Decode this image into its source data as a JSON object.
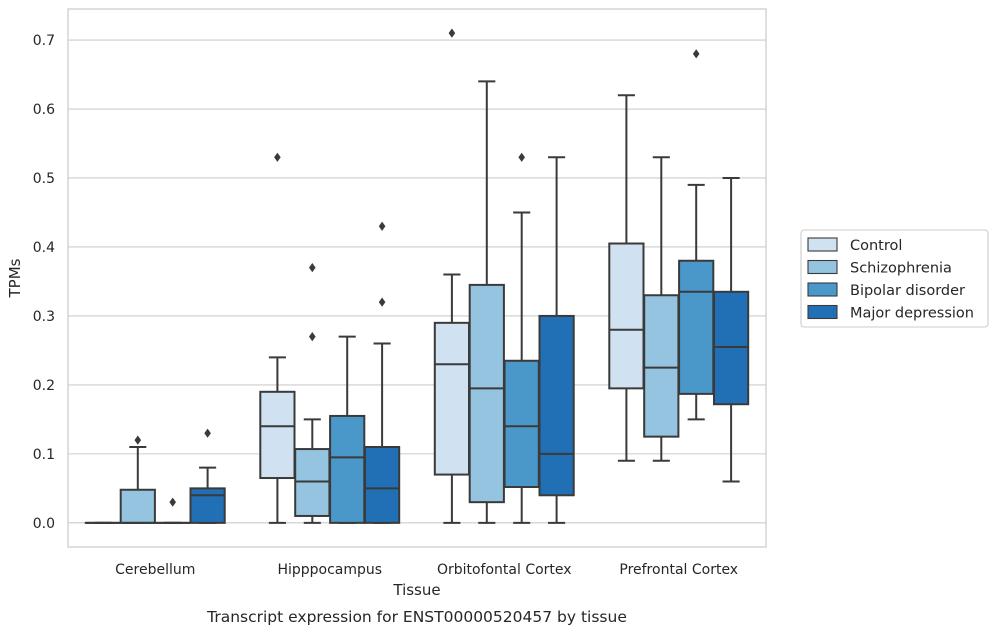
{
  "caption": "Transcript expression for ENST00000520457 by tissue",
  "chart_data": {
    "type": "box",
    "title": "",
    "xlabel": "Tissue",
    "ylabel": "TPMs",
    "ylim": [
      -0.035,
      0.745
    ],
    "yticks": [
      0.0,
      0.1,
      0.2,
      0.3,
      0.4,
      0.5,
      0.6,
      0.7
    ],
    "ytick_labels": [
      "0.0",
      "0.1",
      "0.2",
      "0.3",
      "0.4",
      "0.5",
      "0.6",
      "0.7"
    ],
    "grid": "horizontal",
    "legend_position": "right",
    "categories": [
      "Cerebellum",
      "Hipppocampus",
      "Orbitofontal Cortex",
      "Prefrontal Cortex"
    ],
    "series": [
      {
        "name": "Control",
        "color": "#d0e1f2",
        "boxes": [
          {
            "min": 0.0,
            "q1": 0.0,
            "median": 0.0,
            "q3": 0.0,
            "max": 0.0,
            "outliers": []
          },
          {
            "min": 0.0,
            "q1": 0.065,
            "median": 0.14,
            "q3": 0.19,
            "max": 0.24,
            "outliers": [
              0.53
            ]
          },
          {
            "min": 0.0,
            "q1": 0.07,
            "median": 0.23,
            "q3": 0.29,
            "max": 0.36,
            "outliers": [
              0.71
            ]
          },
          {
            "min": 0.09,
            "q1": 0.195,
            "median": 0.28,
            "q3": 0.405,
            "max": 0.62,
            "outliers": []
          }
        ]
      },
      {
        "name": "Schizophrenia",
        "color": "#94c4df",
        "boxes": [
          {
            "min": 0.0,
            "q1": 0.0,
            "median": 0.0,
            "q3": 0.048,
            "max": 0.11,
            "outliers": [
              0.12
            ]
          },
          {
            "min": 0.0,
            "q1": 0.01,
            "median": 0.06,
            "q3": 0.107,
            "max": 0.15,
            "outliers": [
              0.27,
              0.37
            ]
          },
          {
            "min": 0.0,
            "q1": 0.03,
            "median": 0.195,
            "q3": 0.345,
            "max": 0.64,
            "outliers": []
          },
          {
            "min": 0.09,
            "q1": 0.125,
            "median": 0.225,
            "q3": 0.33,
            "max": 0.53,
            "outliers": []
          }
        ]
      },
      {
        "name": "Bipolar disorder",
        "color": "#4a98c9",
        "boxes": [
          {
            "min": 0.0,
            "q1": 0.0,
            "median": 0.0,
            "q3": 0.0,
            "max": 0.0,
            "outliers": [
              0.03
            ]
          },
          {
            "min": 0.0,
            "q1": 0.0,
            "median": 0.095,
            "q3": 0.155,
            "max": 0.27,
            "outliers": []
          },
          {
            "min": 0.0,
            "q1": 0.052,
            "median": 0.14,
            "q3": 0.235,
            "max": 0.45,
            "outliers": [
              0.53
            ]
          },
          {
            "min": 0.15,
            "q1": 0.187,
            "median": 0.335,
            "q3": 0.38,
            "max": 0.49,
            "outliers": [
              0.68
            ]
          }
        ]
      },
      {
        "name": "Major depression",
        "color": "#2170b5",
        "boxes": [
          {
            "min": 0.0,
            "q1": 0.0,
            "median": 0.04,
            "q3": 0.05,
            "max": 0.08,
            "outliers": [
              0.13
            ]
          },
          {
            "min": 0.0,
            "q1": 0.0,
            "median": 0.05,
            "q3": 0.11,
            "max": 0.26,
            "outliers": [
              0.32,
              0.43
            ]
          },
          {
            "min": 0.0,
            "q1": 0.04,
            "median": 0.1,
            "q3": 0.3,
            "max": 0.53,
            "outliers": []
          },
          {
            "min": 0.06,
            "q1": 0.172,
            "median": 0.255,
            "q3": 0.335,
            "max": 0.5,
            "outliers": []
          }
        ]
      }
    ]
  }
}
